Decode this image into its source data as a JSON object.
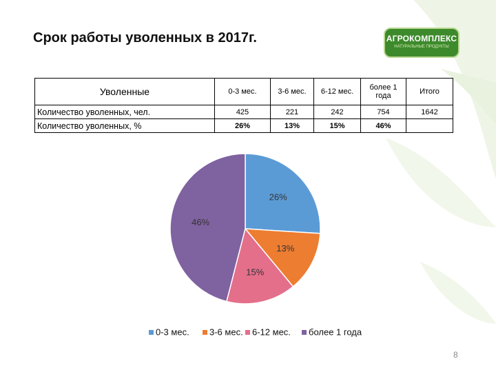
{
  "title": "Срок работы уволенных в 2017г.",
  "logo": {
    "name": "АГРОКОМПЛЕКС",
    "tagline": "НАТУРАЛЬНЫЕ ПРОДУКТЫ"
  },
  "table": {
    "header": [
      "Уволенные",
      "0-3 мес.",
      "3-6 мес.",
      "6-12 мес.",
      "более 1 года",
      "Итого"
    ],
    "rows": [
      [
        "Количество уволенных, чел.",
        425,
        221,
        242,
        754,
        1642
      ],
      [
        "Количество уволенных, %",
        "26%",
        "13%",
        "15%",
        "46%"
      ]
    ]
  },
  "chart_data": {
    "type": "pie",
    "categories": [
      "0-3 мес.",
      "3-6 мес.",
      "6-12 мес.",
      "более 1 года"
    ],
    "values": [
      26,
      13,
      15,
      46
    ],
    "value_labels": [
      "26%",
      "13%",
      "15%",
      "46%"
    ],
    "colors": [
      "#5b9bd5",
      "#ed7d31",
      "#e46f8b",
      "#7f62a0"
    ],
    "legend": "bottom"
  },
  "page_number": "8"
}
